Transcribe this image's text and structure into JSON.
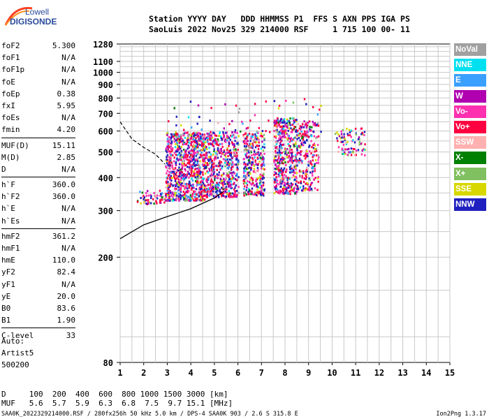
{
  "logo": {
    "line1": "Lowell",
    "line2": "DIGISONDE"
  },
  "header": {
    "line1": "Station YYYY DAY   DDD HHMMSS P1  FFS S AXN PPS IGA PS",
    "line2": "SaoLuis 2022 Nov25 329 214000 RSF     1 715 100 00- 11"
  },
  "params": {
    "group1": [
      {
        "name": "foF2",
        "value": "5.300"
      },
      {
        "name": "foF1",
        "value": "N/A"
      },
      {
        "name": "foF1p",
        "value": "N/A"
      },
      {
        "name": "foE",
        "value": "N/A"
      },
      {
        "name": "foEp",
        "value": "0.38"
      },
      {
        "name": "fxI",
        "value": "5.95"
      },
      {
        "name": "foEs",
        "value": "N/A"
      },
      {
        "name": "fmin",
        "value": "4.20"
      }
    ],
    "group2": [
      {
        "name": "MUF(D)",
        "value": "15.11"
      },
      {
        "name": "M(D)",
        "value": "2.85"
      },
      {
        "name": "D",
        "value": "N/A"
      }
    ],
    "group3": [
      {
        "name": "h`F",
        "value": "360.0"
      },
      {
        "name": "h`F2",
        "value": "360.0"
      },
      {
        "name": "h`E",
        "value": "N/A"
      },
      {
        "name": "h`Es",
        "value": "N/A"
      }
    ],
    "group4": [
      {
        "name": "hmF2",
        "value": "361.2"
      },
      {
        "name": "hmF1",
        "value": "N/A"
      },
      {
        "name": "hmE",
        "value": "110.0"
      },
      {
        "name": "yF2",
        "value": "82.4"
      },
      {
        "name": "yF1",
        "value": "N/A"
      },
      {
        "name": "yE",
        "value": "20.0"
      },
      {
        "name": "B0",
        "value": "83.6"
      },
      {
        "name": "B1",
        "value": "1.90"
      }
    ],
    "group5": [
      {
        "name": "C-level",
        "value": "33"
      }
    ]
  },
  "auto": {
    "line1": "Auto:",
    "line2": "Artist5",
    "line3": "500200"
  },
  "legend": [
    {
      "label": "NoVal",
      "color": "#a0a0a0"
    },
    {
      "label": "NNE",
      "color": "#00e0f0"
    },
    {
      "label": "E",
      "color": "#3aa0ff"
    },
    {
      "label": "W",
      "color": "#b000b0"
    },
    {
      "label": "Vo-",
      "color": "#ff30b0"
    },
    {
      "label": "Vo+",
      "color": "#ff0040"
    },
    {
      "label": "SSW",
      "color": "#ffb0b0"
    },
    {
      "label": "X-",
      "color": "#008000"
    },
    {
      "label": "X+",
      "color": "#80c060"
    },
    {
      "label": "SSE",
      "color": "#d8d800"
    },
    {
      "label": "NNW",
      "color": "#2020c0"
    }
  ],
  "muf_table": {
    "d_line": "D     100  200  400  600  800 1000 1500 3000 [km]",
    "muf_line": "MUF   5.6  5.7  5.9  6.3  6.8  7.5  9.7 15.1 [MHz]"
  },
  "footer": "SAA0K_2022329214000.RSF / 280fx256h 50 kHz 5.0 km / DPS-4 SAA0K 903 / 2.6 S 315.8 E",
  "version": "Ion2Png 1.3.17",
  "chart_data": {
    "type": "scatter",
    "x_ticks": [
      "1",
      "2",
      "3",
      "4",
      "5",
      "6",
      "7",
      "8",
      "9",
      "10",
      "11",
      "12",
      "13",
      "14",
      "15"
    ],
    "y_ticks": [
      "80",
      "200",
      "300",
      "400",
      "500",
      "600",
      "700",
      "800",
      "900",
      "1000",
      "1100",
      "1280"
    ],
    "xlim": [
      1,
      15
    ],
    "ylim": [
      80,
      1280
    ],
    "y_scale": "log",
    "grid": true,
    "legend_position": "right",
    "clusters": [
      {
        "x": [
          1.7,
          2.9
        ],
        "y": [
          320,
          360
        ],
        "n": 60
      },
      {
        "x": [
          2.9,
          4.6
        ],
        "y": [
          330,
          600
        ],
        "n": 900
      },
      {
        "x": [
          4.6,
          6.0
        ],
        "y": [
          340,
          600
        ],
        "n": 520
      },
      {
        "x": [
          6.2,
          7.1
        ],
        "y": [
          345,
          600
        ],
        "n": 320
      },
      {
        "x": [
          7.5,
          8.5
        ],
        "y": [
          350,
          680
        ],
        "n": 480
      },
      {
        "x": [
          8.5,
          9.4
        ],
        "y": [
          360,
          660
        ],
        "n": 220
      },
      {
        "x": [
          10.1,
          11.4
        ],
        "y": [
          490,
          620
        ],
        "n": 90
      },
      {
        "x": [
          3.0,
          9.5
        ],
        "y": [
          600,
          800
        ],
        "n": 60
      }
    ],
    "solid_curve": [
      [
        1,
        235
      ],
      [
        2,
        265
      ],
      [
        3,
        285
      ],
      [
        4,
        305
      ],
      [
        5,
        335
      ],
      [
        5.4,
        355
      ]
    ],
    "dashed_curve": [
      [
        1,
        650
      ],
      [
        1.5,
        560
      ],
      [
        2,
        520
      ],
      [
        2.5,
        490
      ],
      [
        2.9,
        450
      ]
    ]
  }
}
